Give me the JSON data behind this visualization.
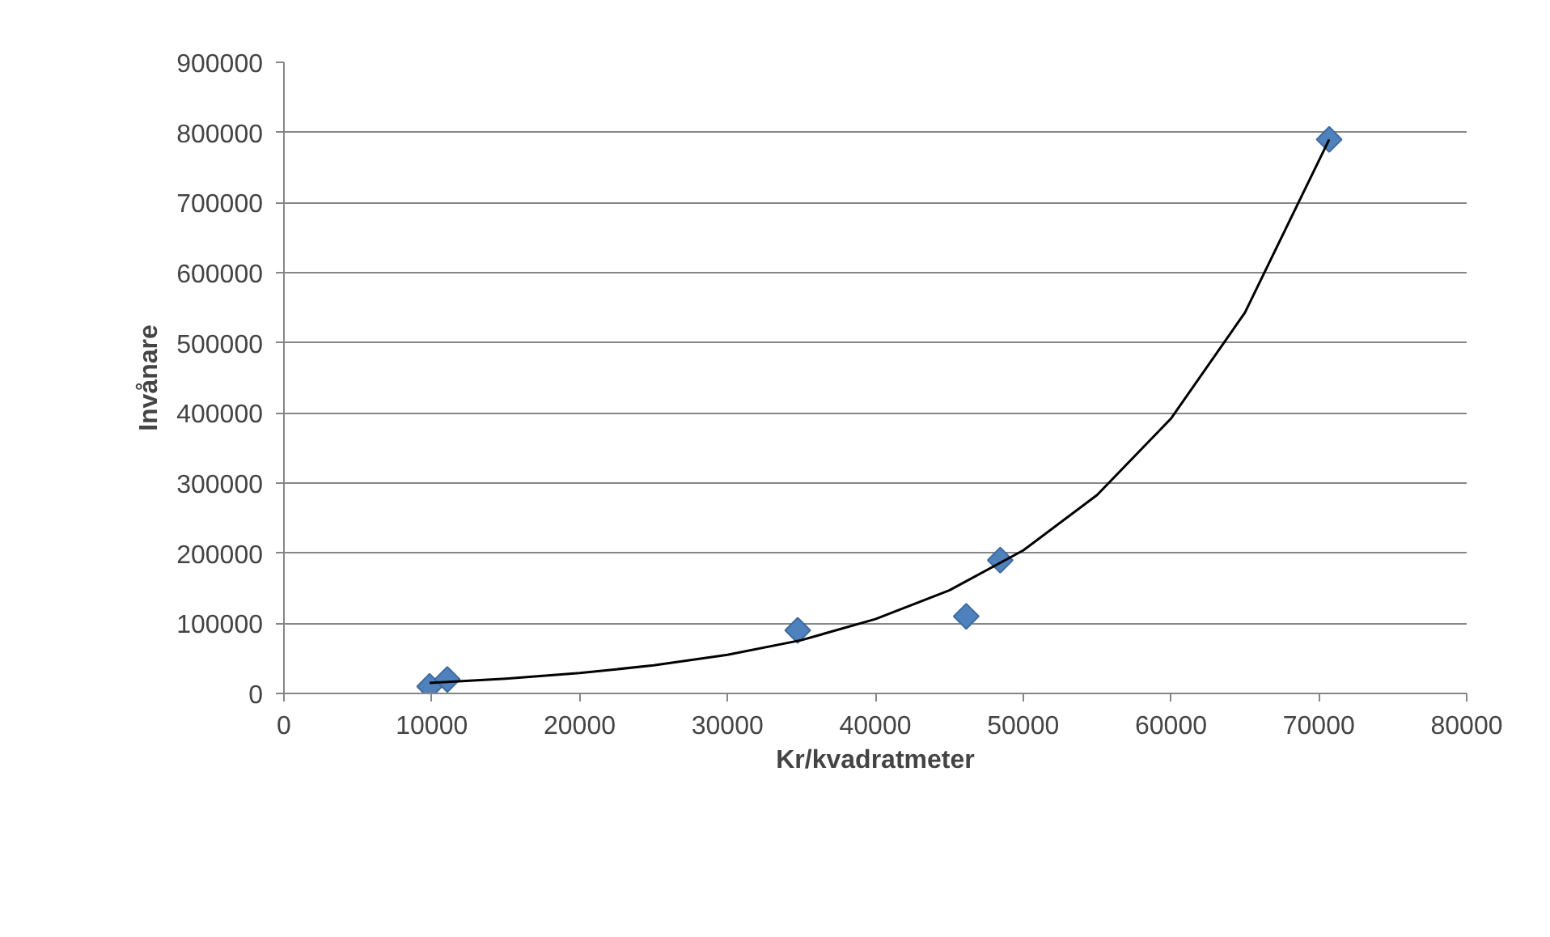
{
  "chart_data": {
    "type": "scatter",
    "xlabel": "Kr/kvadratmeter",
    "ylabel": "Invånare",
    "xlim": [
      0,
      80000
    ],
    "ylim": [
      0,
      900000
    ],
    "xticks": [
      0,
      10000,
      20000,
      30000,
      40000,
      50000,
      60000,
      70000,
      80000
    ],
    "yticks": [
      0,
      100000,
      200000,
      300000,
      400000,
      500000,
      600000,
      700000,
      800000,
      900000
    ],
    "grid": "y",
    "marker": "diamond",
    "series": [
      {
        "color": "#4f81bd",
        "x": [
          9850,
          11050,
          34750,
          46150,
          48450,
          70700
        ],
        "values": [
          10000,
          20000,
          90000,
          110000,
          190000,
          790000
        ]
      },
      {
        "type": "line",
        "color": "#000000",
        "marker": "none",
        "line_style": "solid",
        "x": [
          9850,
          15000,
          20000,
          25000,
          30000,
          35000,
          40000,
          45000,
          50000,
          55000,
          60000,
          65000,
          70700
        ],
        "values": [
          15000,
          21000,
          29000,
          40000,
          55000,
          76000,
          106000,
          147000,
          204000,
          283000,
          392000,
          543000,
          790000
        ]
      }
    ]
  }
}
